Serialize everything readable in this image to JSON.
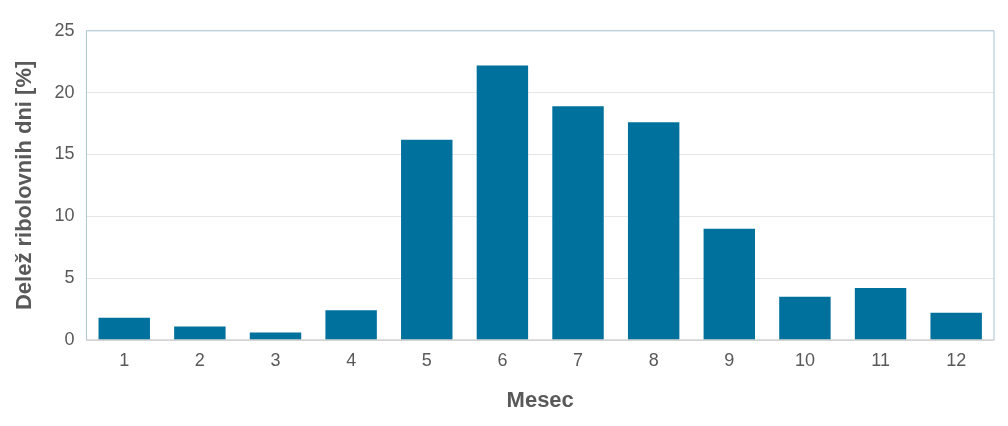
{
  "chart_data": {
    "type": "bar",
    "xlabel": "Mesec",
    "ylabel": "Delež ribolovnih dni [%]",
    "categories": [
      "1",
      "2",
      "3",
      "4",
      "5",
      "6",
      "7",
      "8",
      "9",
      "10",
      "11",
      "12"
    ],
    "values": [
      1.8,
      1.1,
      0.6,
      2.4,
      16.2,
      22.2,
      18.9,
      17.6,
      9.0,
      3.5,
      4.2,
      2.2
    ],
    "color": "#00709c",
    "ylim": [
      0,
      25
    ],
    "yticks": [
      0,
      5,
      10,
      15,
      20,
      25
    ],
    "grid": "y",
    "legend": false
  }
}
